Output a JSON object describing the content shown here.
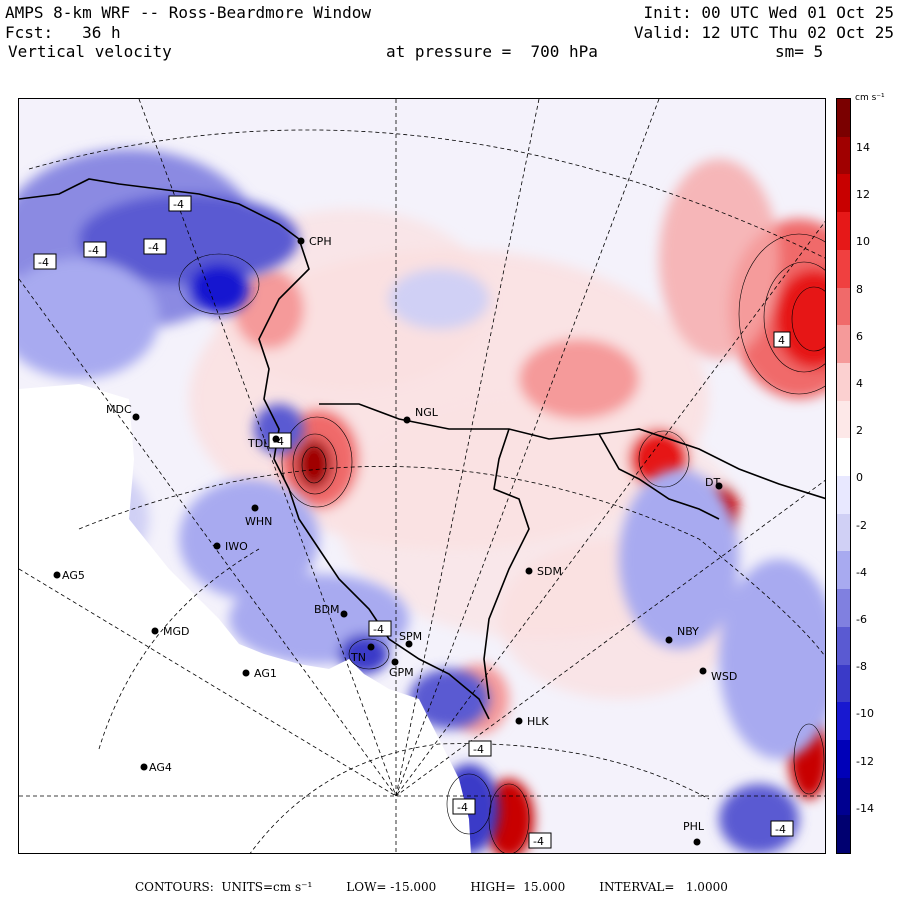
{
  "header": {
    "title": "AMPS 8-km WRF -- Ross-Beardmore Window",
    "init": "Init: 00 UTC Wed 01 Oct 25",
    "fcst": "Fcst:   36 h",
    "valid": "Valid: 12 UTC Thu 02 Oct 25",
    "variable": "Vertical velocity",
    "pressure": "at pressure =  700 hPa",
    "smoothing": "sm= 5"
  },
  "colorbar": {
    "units": "cm s⁻¹",
    "labels": [
      "14",
      "12",
      "10",
      "8",
      "6",
      "4",
      "2",
      "0",
      "-2",
      "-4",
      "-6",
      "-8",
      "-10",
      "-12",
      "-14"
    ],
    "colors": [
      "#7a0000",
      "#a00000",
      "#c80000",
      "#e61818",
      "#f04040",
      "#f06a6a",
      "#f59a9a",
      "#fbd0d0",
      "#fde8e8",
      "#ffffff",
      "#e8e8ff",
      "#d0d0f5",
      "#a8aaf0",
      "#8080e0",
      "#5a5ad2",
      "#3a3ac8",
      "#1818d0",
      "#0000b8",
      "#000090",
      "#000070"
    ]
  },
  "stations": [
    {
      "id": "CPH",
      "label": "CPH"
    },
    {
      "id": "MDC",
      "label": "MDC"
    },
    {
      "id": "NGL",
      "label": "NGL"
    },
    {
      "id": "TDL",
      "label": "TDL"
    },
    {
      "id": "WHN",
      "label": "WHN"
    },
    {
      "id": "IWO",
      "label": "IWO"
    },
    {
      "id": "AG5",
      "label": "AG5"
    },
    {
      "id": "SDM",
      "label": "SDM"
    },
    {
      "id": "BDM",
      "label": "BDM"
    },
    {
      "id": "MGD",
      "label": "MGD"
    },
    {
      "id": "TN",
      "label": "TN"
    },
    {
      "id": "SPM",
      "label": "SPM"
    },
    {
      "id": "GPM",
      "label": "GPM"
    },
    {
      "id": "AG1",
      "label": "AG1"
    },
    {
      "id": "NBY",
      "label": "NBY"
    },
    {
      "id": "WSD",
      "label": "WSD"
    },
    {
      "id": "HLK",
      "label": "HLK"
    },
    {
      "id": "AG4",
      "label": "AG4"
    },
    {
      "id": "PHL",
      "label": "PHL"
    },
    {
      "id": "DT",
      "label": "DT"
    }
  ],
  "contour_labels": {
    "neg": "-4",
    "pos": "4"
  },
  "footer": {
    "contours": "CONTOURS:  UNITS=cm s⁻¹",
    "low": "LOW= -15.000",
    "high": "HIGH=  15.000",
    "interval": "INTERVAL=   1.0000"
  }
}
